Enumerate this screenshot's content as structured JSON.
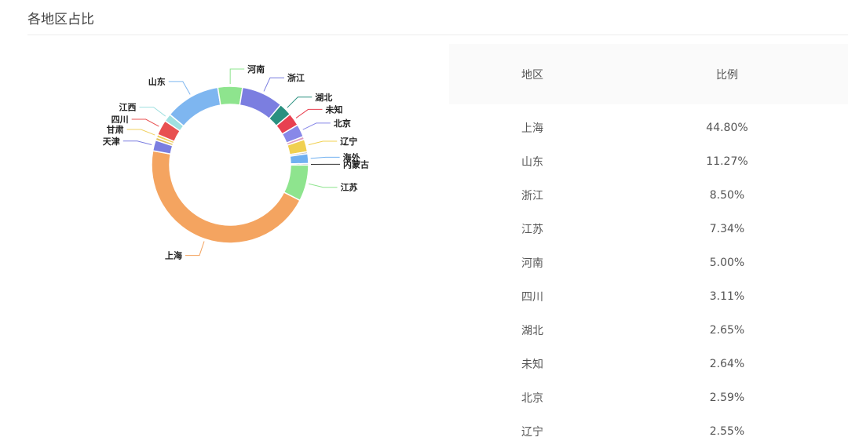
{
  "title": "各地区占比",
  "table": {
    "headers": [
      "地区",
      "比例"
    ],
    "rows": [
      [
        "上海",
        "44.80%"
      ],
      [
        "山东",
        "11.27%"
      ],
      [
        "浙江",
        "8.50%"
      ],
      [
        "江苏",
        "7.34%"
      ],
      [
        "河南",
        "5.00%"
      ],
      [
        "四川",
        "3.11%"
      ],
      [
        "湖北",
        "2.65%"
      ],
      [
        "未知",
        "2.64%"
      ],
      [
        "北京",
        "2.59%"
      ],
      [
        "辽宁",
        "2.55%"
      ]
    ]
  },
  "chart_data": {
    "type": "pie",
    "title": "各地区占比",
    "slices": [
      {
        "label": "上海",
        "value": 44.8,
        "color": "#f4a460"
      },
      {
        "label": "天津",
        "value": 2.2,
        "color": "#7b7ee0"
      },
      {
        "label": "",
        "value": 0.6,
        "color": "#e0c060"
      },
      {
        "label": "甘肃",
        "value": 0.6,
        "color": "#f0d060"
      },
      {
        "label": "四川",
        "value": 3.11,
        "color": "#e85050"
      },
      {
        "label": "江西",
        "value": 1.6,
        "color": "#a0e0e0"
      },
      {
        "label": "山东",
        "value": 11.27,
        "color": "#7eb6f0"
      },
      {
        "label": "河南",
        "value": 5.0,
        "color": "#8ee48e"
      },
      {
        "label": "浙江",
        "value": 8.5,
        "color": "#7b7ee0"
      },
      {
        "label": "湖北",
        "value": 2.65,
        "color": "#2a9080"
      },
      {
        "label": "未知",
        "value": 2.64,
        "color": "#e84050"
      },
      {
        "label": "北京",
        "value": 2.59,
        "color": "#8888e8"
      },
      {
        "label": "",
        "value": 0.6,
        "color": "#e0a0c0"
      },
      {
        "label": "辽宁",
        "value": 2.55,
        "color": "#f0d050"
      },
      {
        "label": "",
        "value": 0.4,
        "color": "#c0c0c0"
      },
      {
        "label": "海外",
        "value": 2.0,
        "color": "#70b0f0"
      },
      {
        "label": "内蒙古",
        "value": 0.3,
        "color": "#333333"
      },
      {
        "label": "江苏",
        "value": 7.34,
        "color": "#8ee48e"
      }
    ]
  }
}
